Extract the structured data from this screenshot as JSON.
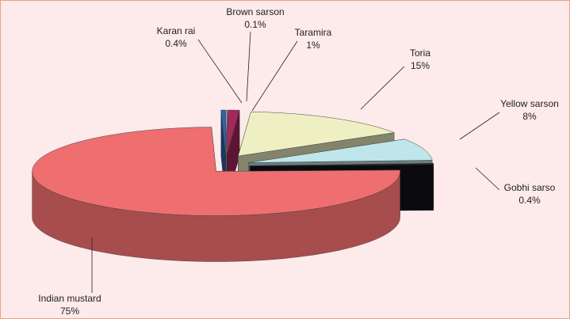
{
  "chart_data": {
    "type": "pie",
    "categories": [
      "Brown sarson",
      "Taramira",
      "Toria",
      "Yellow sarson",
      "Gobhi sarso",
      "Indian mustard",
      "Karan rai"
    ],
    "values": [
      0.1,
      1,
      15,
      8,
      0.4,
      75,
      0.4
    ],
    "value_labels": [
      "0.1%",
      "1%",
      "15%",
      "8%",
      "0.4%",
      "75%",
      "0.4%"
    ],
    "colors": [
      "#dce6f2",
      "#a3285c",
      "#eef0c4",
      "#bfe6ea",
      "#14141c",
      "#ef6e70",
      "#2a63b4"
    ]
  }
}
